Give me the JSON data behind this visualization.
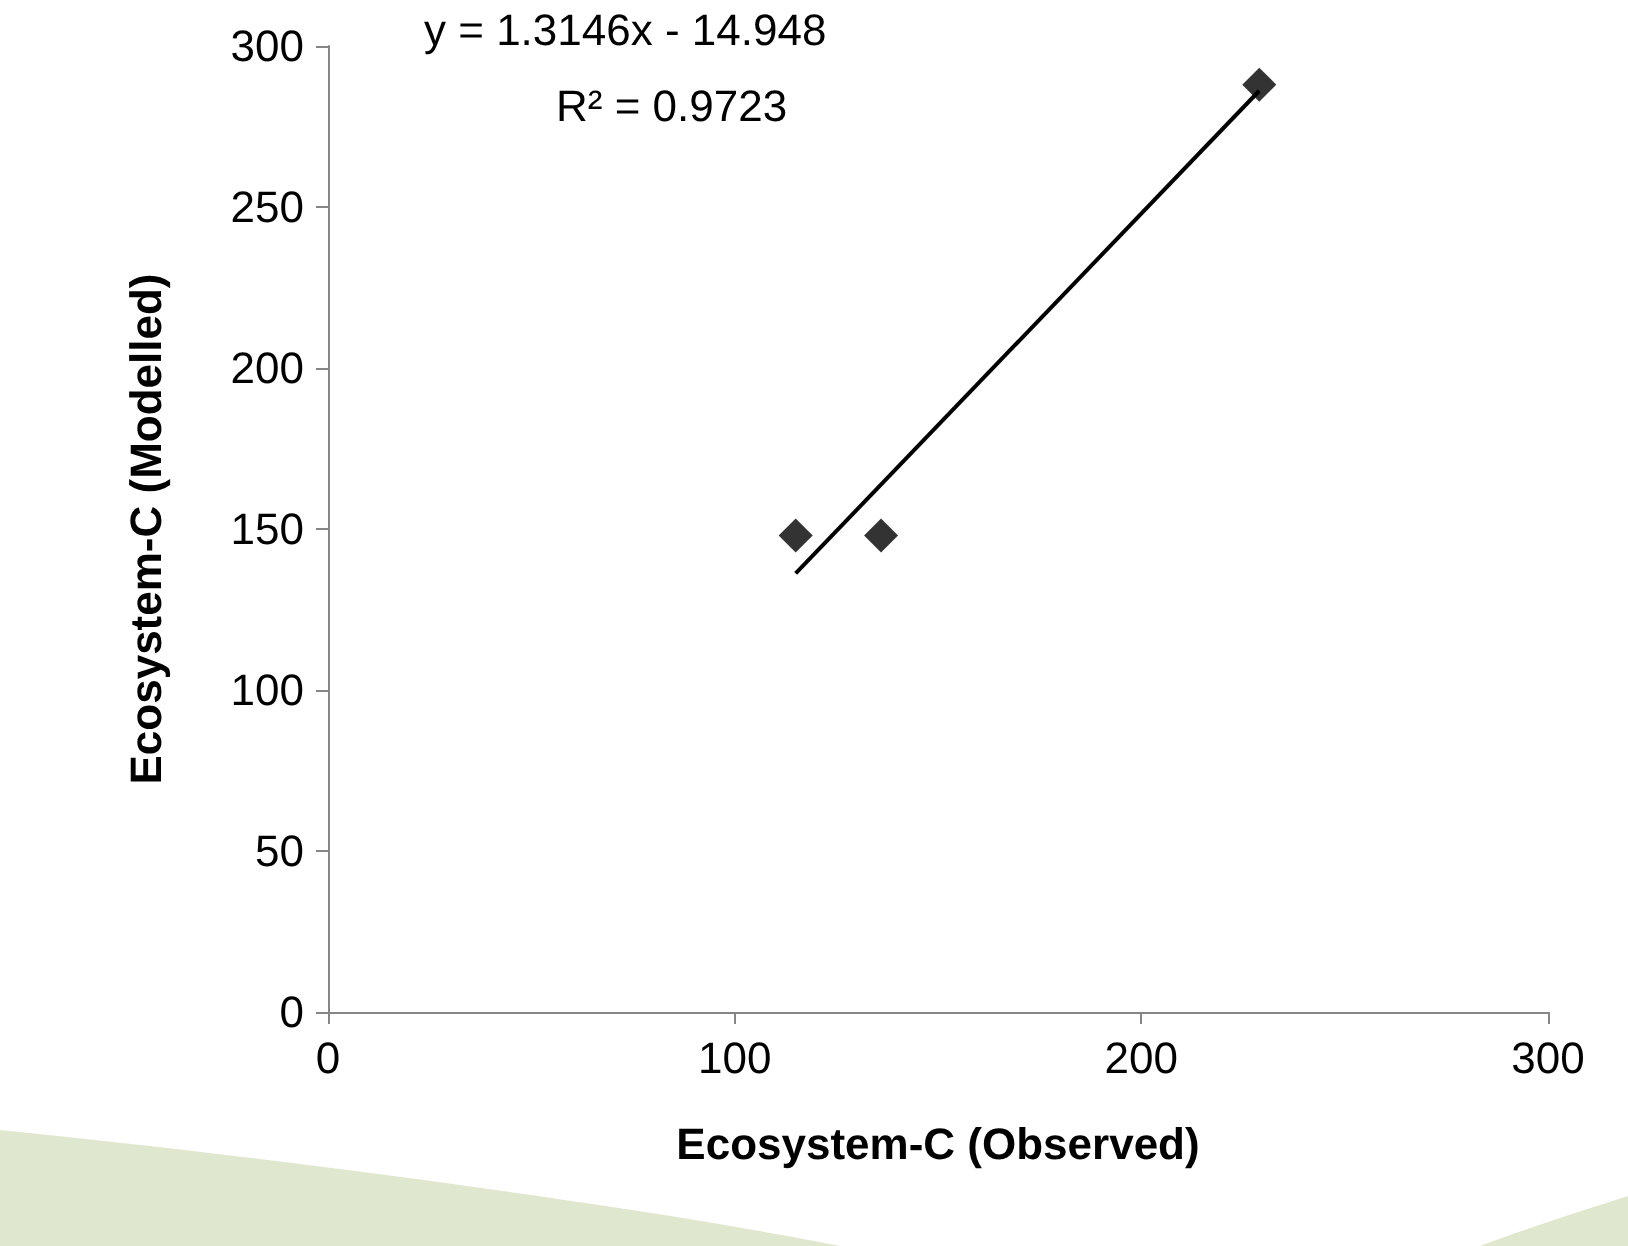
{
  "chart_data": {
    "type": "scatter",
    "xlabel": "Ecosystem-C (Observed)",
    "ylabel": "Ecosystem-C (Modelled)",
    "xlim": [
      0,
      300
    ],
    "xticks": [
      0,
      100,
      200,
      300
    ],
    "ylim": [
      0,
      300
    ],
    "yticks": [
      0,
      50,
      100,
      150,
      200,
      250,
      300
    ],
    "grid": false,
    "marker": "diamond",
    "series": [
      {
        "color": "#000000",
        "x": [
          115,
          136,
          229
        ],
        "values": [
          148,
          148,
          288
        ]
      },
      {
        "type": "line",
        "color": "#000000",
        "marker": "none",
        "line_style": "solid",
        "x": [
          115,
          229
        ],
        "values": [
          136.2,
          286.1
        ]
      }
    ],
    "annotations": [
      "y = 1.3146x - 14.948",
      "R² = 0.9723"
    ]
  }
}
